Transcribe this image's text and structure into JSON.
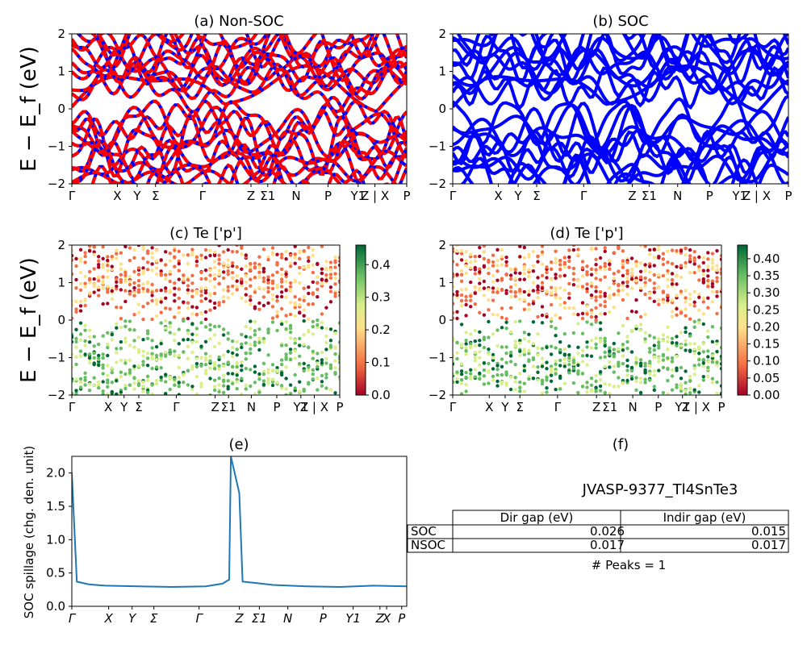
{
  "colors": {
    "red": "#ff0000",
    "blue": "#0000ff",
    "line": "#1f77b4",
    "cmap": [
      "#a50026",
      "#f46d43",
      "#fee08b",
      "#d9ef8b",
      "#66bd63",
      "#006837"
    ]
  },
  "band_ylabel": "E − E_f (eV)",
  "kpath": [
    "Γ",
    "X",
    "Y",
    "Σ",
    "Γ",
    "Z",
    "Σ1",
    "N",
    "P",
    "Y1",
    "Z | X",
    "P"
  ],
  "panel_a": {
    "title": "(a) Non-SOC",
    "yticks": [
      "2",
      "1",
      "0",
      "−1",
      "−2"
    ]
  },
  "panel_b": {
    "title": "(b) SOC",
    "yticks": [
      "2",
      "1",
      "0",
      "−1",
      "−2"
    ]
  },
  "panel_c": {
    "title": "(c)  Te ['p']",
    "yticks": [
      "2",
      "1",
      "0",
      "−1",
      "−2"
    ],
    "colorbar_ticks": [
      "0.4",
      "0.3",
      "0.2",
      "0.1",
      "0.0"
    ],
    "colorbar_max": 0.46
  },
  "panel_d": {
    "title": "(d) Te ['p']",
    "yticks": [
      "2",
      "1",
      "0",
      "−1",
      "−2"
    ],
    "colorbar_ticks": [
      "0.40",
      "0.35",
      "0.30",
      "0.25",
      "0.20",
      "0.15",
      "0.10",
      "0.05",
      "0.00"
    ],
    "colorbar_max": 0.44
  },
  "panel_e": {
    "title": "(e)",
    "ylabel": "SOC spillage (chg. den. unit)",
    "yticks": [
      "2.0",
      "1.5",
      "1.0",
      "0.5",
      "0.0"
    ],
    "xticks": [
      "Γ",
      "X",
      "Y",
      "Σ",
      "Γ",
      "Z",
      "Σ1",
      "N",
      "P",
      "Y1",
      "Z",
      "X",
      "P"
    ]
  },
  "panel_f": {
    "title": "(f)",
    "material": "JVASP-9377_Tl4SnTe3",
    "table_header": [
      "Dir gap (eV)",
      "Indir gap (eV)"
    ],
    "table_rows": [
      {
        "label": "SOC",
        "dir": "0.026",
        "indir": "0.015"
      },
      {
        "label": "NSOC",
        "dir": "0.017",
        "indir": "0.017"
      }
    ],
    "peaks": "# Peaks = 1"
  },
  "chart_data": [
    {
      "type": "line",
      "title": "(a) Non-SOC",
      "ylabel": "E − E_f (eV)",
      "ylim": [
        -2,
        2
      ],
      "x_ticks": [
        "Γ",
        "X",
        "Y",
        "Σ",
        "Γ",
        "Z",
        "Σ1",
        "N",
        "P",
        "Y1",
        "Z | X",
        "P"
      ],
      "series": [
        {
          "values": "band structure (spin-up red, spin-down blue dashed)"
        }
      ]
    },
    {
      "type": "line",
      "title": "(b) SOC",
      "ylim": [
        -2,
        2
      ],
      "x_ticks": [
        "Γ",
        "X",
        "Y",
        "Σ",
        "Γ",
        "Z",
        "Σ1",
        "N",
        "P",
        "Y1",
        "Z | X",
        "P"
      ]
    },
    {
      "type": "scatter",
      "title": "(c)  Te ['p']",
      "ylim": [
        -2,
        2
      ],
      "colorbar_range": [
        0.0,
        0.46
      ]
    },
    {
      "type": "scatter",
      "title": "(d) Te ['p']",
      "ylim": [
        -2,
        2
      ],
      "colorbar_range": [
        0.0,
        0.44
      ]
    },
    {
      "type": "line",
      "title": "(e)",
      "ylabel": "SOC spillage (chg. den. unit)",
      "ylim": [
        0,
        2.25
      ],
      "series": [
        {
          "points": [
            [
              0,
              2.0
            ],
            [
              0.015,
              0.37
            ],
            [
              0.05,
              0.33
            ],
            [
              0.1,
              0.31
            ],
            [
              0.2,
              0.3
            ],
            [
              0.3,
              0.29
            ],
            [
              0.4,
              0.3
            ],
            [
              0.45,
              0.34
            ],
            [
              0.47,
              0.4
            ],
            [
              0.475,
              2.25
            ],
            [
              0.5,
              1.7
            ],
            [
              0.51,
              0.37
            ],
            [
              0.55,
              0.35
            ],
            [
              0.6,
              0.32
            ],
            [
              0.7,
              0.3
            ],
            [
              0.8,
              0.29
            ],
            [
              0.9,
              0.31
            ],
            [
              1.0,
              0.3
            ]
          ]
        }
      ]
    },
    {
      "type": "table",
      "title": "(f)",
      "columns": [
        "",
        "Dir gap (eV)",
        "Indir gap (eV)"
      ],
      "rows": [
        [
          "SOC",
          "0.026",
          "0.015"
        ],
        [
          "NSOC",
          "0.017",
          "0.017"
        ]
      ]
    }
  ]
}
